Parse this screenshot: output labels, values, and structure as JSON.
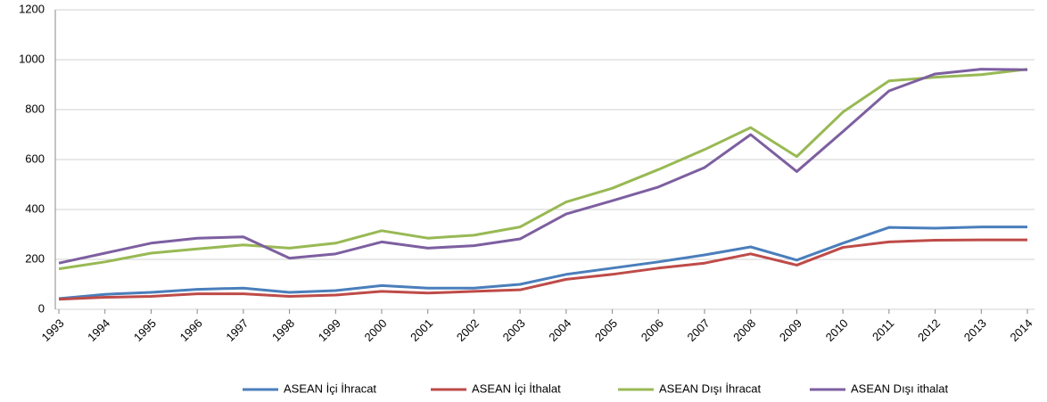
{
  "chart_data": {
    "type": "line",
    "categories": [
      "1993",
      "1994",
      "1995",
      "1996",
      "1997",
      "1998",
      "1999",
      "2000",
      "2001",
      "2002",
      "2003",
      "2004",
      "2005",
      "2006",
      "2007",
      "2008",
      "2009",
      "2010",
      "2011",
      "2012",
      "2013",
      "2014"
    ],
    "series": [
      {
        "name": "ASEAN İçi İhracat",
        "color": "#4a7ebb",
        "values": [
          43,
          60,
          68,
          80,
          85,
          68,
          75,
          95,
          85,
          85,
          100,
          140,
          165,
          190,
          218,
          250,
          197,
          265,
          328,
          325,
          330,
          330
        ]
      },
      {
        "name": "ASEAN İçi İthalat",
        "color": "#be4b48",
        "values": [
          40,
          48,
          52,
          62,
          62,
          52,
          57,
          72,
          65,
          72,
          78,
          120,
          140,
          165,
          185,
          222,
          177,
          248,
          270,
          277,
          278,
          278
        ]
      },
      {
        "name": "ASEAN Dışı İhracat",
        "color": "#98b954",
        "values": [
          162,
          190,
          225,
          242,
          258,
          245,
          265,
          315,
          285,
          297,
          330,
          430,
          485,
          560,
          640,
          728,
          612,
          790,
          915,
          930,
          940,
          962
        ]
      },
      {
        "name": "ASEAN Dışı ithalat",
        "color": "#7d5fa0",
        "values": [
          185,
          225,
          265,
          285,
          290,
          205,
          222,
          270,
          245,
          255,
          282,
          382,
          435,
          490,
          568,
          700,
          552,
          712,
          875,
          943,
          962,
          960
        ]
      }
    ],
    "ylim": [
      0,
      1200
    ],
    "yticks": [
      0,
      200,
      400,
      600,
      800,
      1000,
      1200
    ],
    "grid": true,
    "legend": "bottom"
  }
}
